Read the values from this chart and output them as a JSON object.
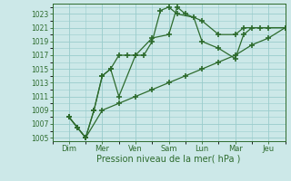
{
  "xlabel": "Pression niveau de la mer( hPa )",
  "background_color": "#cce8e8",
  "grid_color": "#99cccc",
  "line_color": "#2d6b2d",
  "ylim_min": 1004.5,
  "ylim_max": 1024.5,
  "yticks": [
    1005,
    1007,
    1009,
    1011,
    1013,
    1015,
    1017,
    1019,
    1021,
    1023
  ],
  "xtick_pos": [
    0,
    1,
    2,
    3,
    4,
    5,
    6
  ],
  "xtick_labels": [
    "Dim",
    "Mer",
    "Ven",
    "Sam",
    "Lun",
    "Mar",
    "Jeu"
  ],
  "xlim_min": -0.15,
  "xlim_max": 6.5,
  "s1_x": [
    0.0,
    0.25,
    0.5,
    0.75,
    1.0,
    1.25,
    1.5,
    1.75,
    2.0,
    2.5,
    3.0,
    3.25,
    3.5,
    4.0,
    4.5,
    5.0,
    5.25,
    5.75,
    6.5
  ],
  "s1_y": [
    1008,
    1006.5,
    1005,
    1009,
    1014,
    1015,
    1017,
    1017,
    1017,
    1019.5,
    1020,
    1024,
    1023,
    1022,
    1020,
    1020,
    1021,
    1021,
    1021
  ],
  "s2_x": [
    0.0,
    0.25,
    0.5,
    0.75,
    1.0,
    1.25,
    1.5,
    2.0,
    2.25,
    2.5,
    2.75,
    3.0,
    3.25,
    3.75,
    4.0,
    4.5,
    5.0,
    5.25,
    5.5,
    6.0,
    6.5
  ],
  "s2_y": [
    1008,
    1006.5,
    1005,
    1009,
    1014,
    1015,
    1011,
    1017,
    1017,
    1019,
    1023.5,
    1024,
    1023,
    1022.5,
    1019,
    1018,
    1016.5,
    1020,
    1021,
    1021,
    1021
  ],
  "s3_x": [
    0.0,
    0.5,
    1.0,
    1.5,
    2.0,
    2.5,
    3.0,
    3.5,
    4.0,
    4.5,
    5.0,
    5.5,
    6.0,
    6.5
  ],
  "s3_y": [
    1008,
    1005,
    1009,
    1010,
    1011,
    1012,
    1013,
    1014,
    1015,
    1016,
    1017,
    1018.5,
    1019.5,
    1021
  ]
}
